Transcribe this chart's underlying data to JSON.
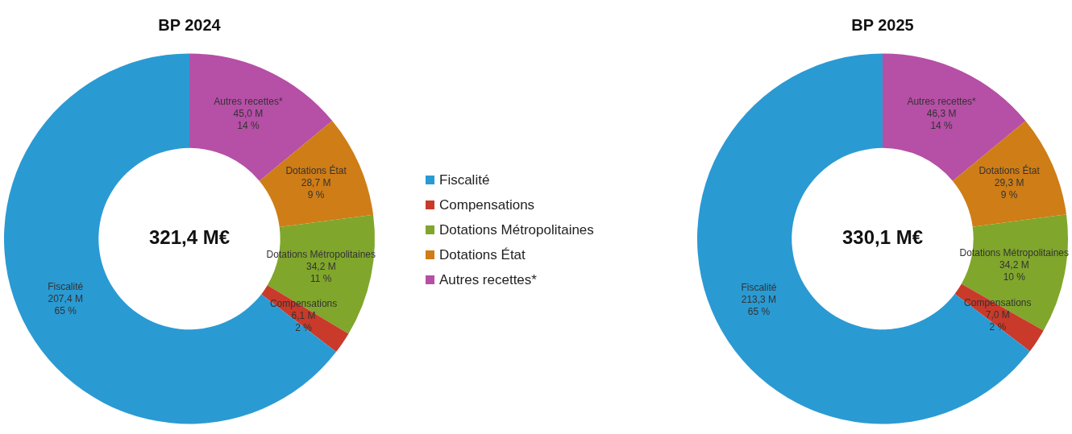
{
  "chart_data": [
    {
      "type": "donut",
      "title": "BP 2024",
      "categories": [
        "Fiscalité",
        "Compensations",
        "Dotations Métropolitaines",
        "Dotations État",
        "Autres recettes*"
      ],
      "values": [
        207.4,
        6.1,
        34.2,
        28.7,
        45.0
      ],
      "colors": [
        "#2a9ad3",
        "#c93a2a",
        "#80a62c",
        "#cf7d17",
        "#b64fa6"
      ],
      "value_labels": [
        "207,4 M\n65 %",
        "6,1 M\n2 %",
        "34,2 M\n11 %",
        "28,7 M\n9 %",
        "45,0 M\n14 %"
      ],
      "annotations": [
        "321,4 M€"
      ],
      "legend": "right"
    },
    {
      "type": "donut",
      "title": "BP 2025",
      "categories": [
        "Fiscalité",
        "Compensations",
        "Dotations Métropolitaines",
        "Dotations État",
        "Autres recettes*"
      ],
      "values": [
        213.3,
        7.0,
        34.2,
        29.3,
        46.3
      ],
      "colors": [
        "#2a9ad3",
        "#c93a2a",
        "#80a62c",
        "#cf7d17",
        "#b64fa6"
      ],
      "value_labels": [
        "213,3 M\n65 %",
        "7,0 M\n2 %",
        "34,2 M\n10 %",
        "29,3 M\n9 %",
        "46,3 M\n14 %"
      ],
      "annotations": [
        "330,1 M€"
      ],
      "legend": false
    }
  ]
}
